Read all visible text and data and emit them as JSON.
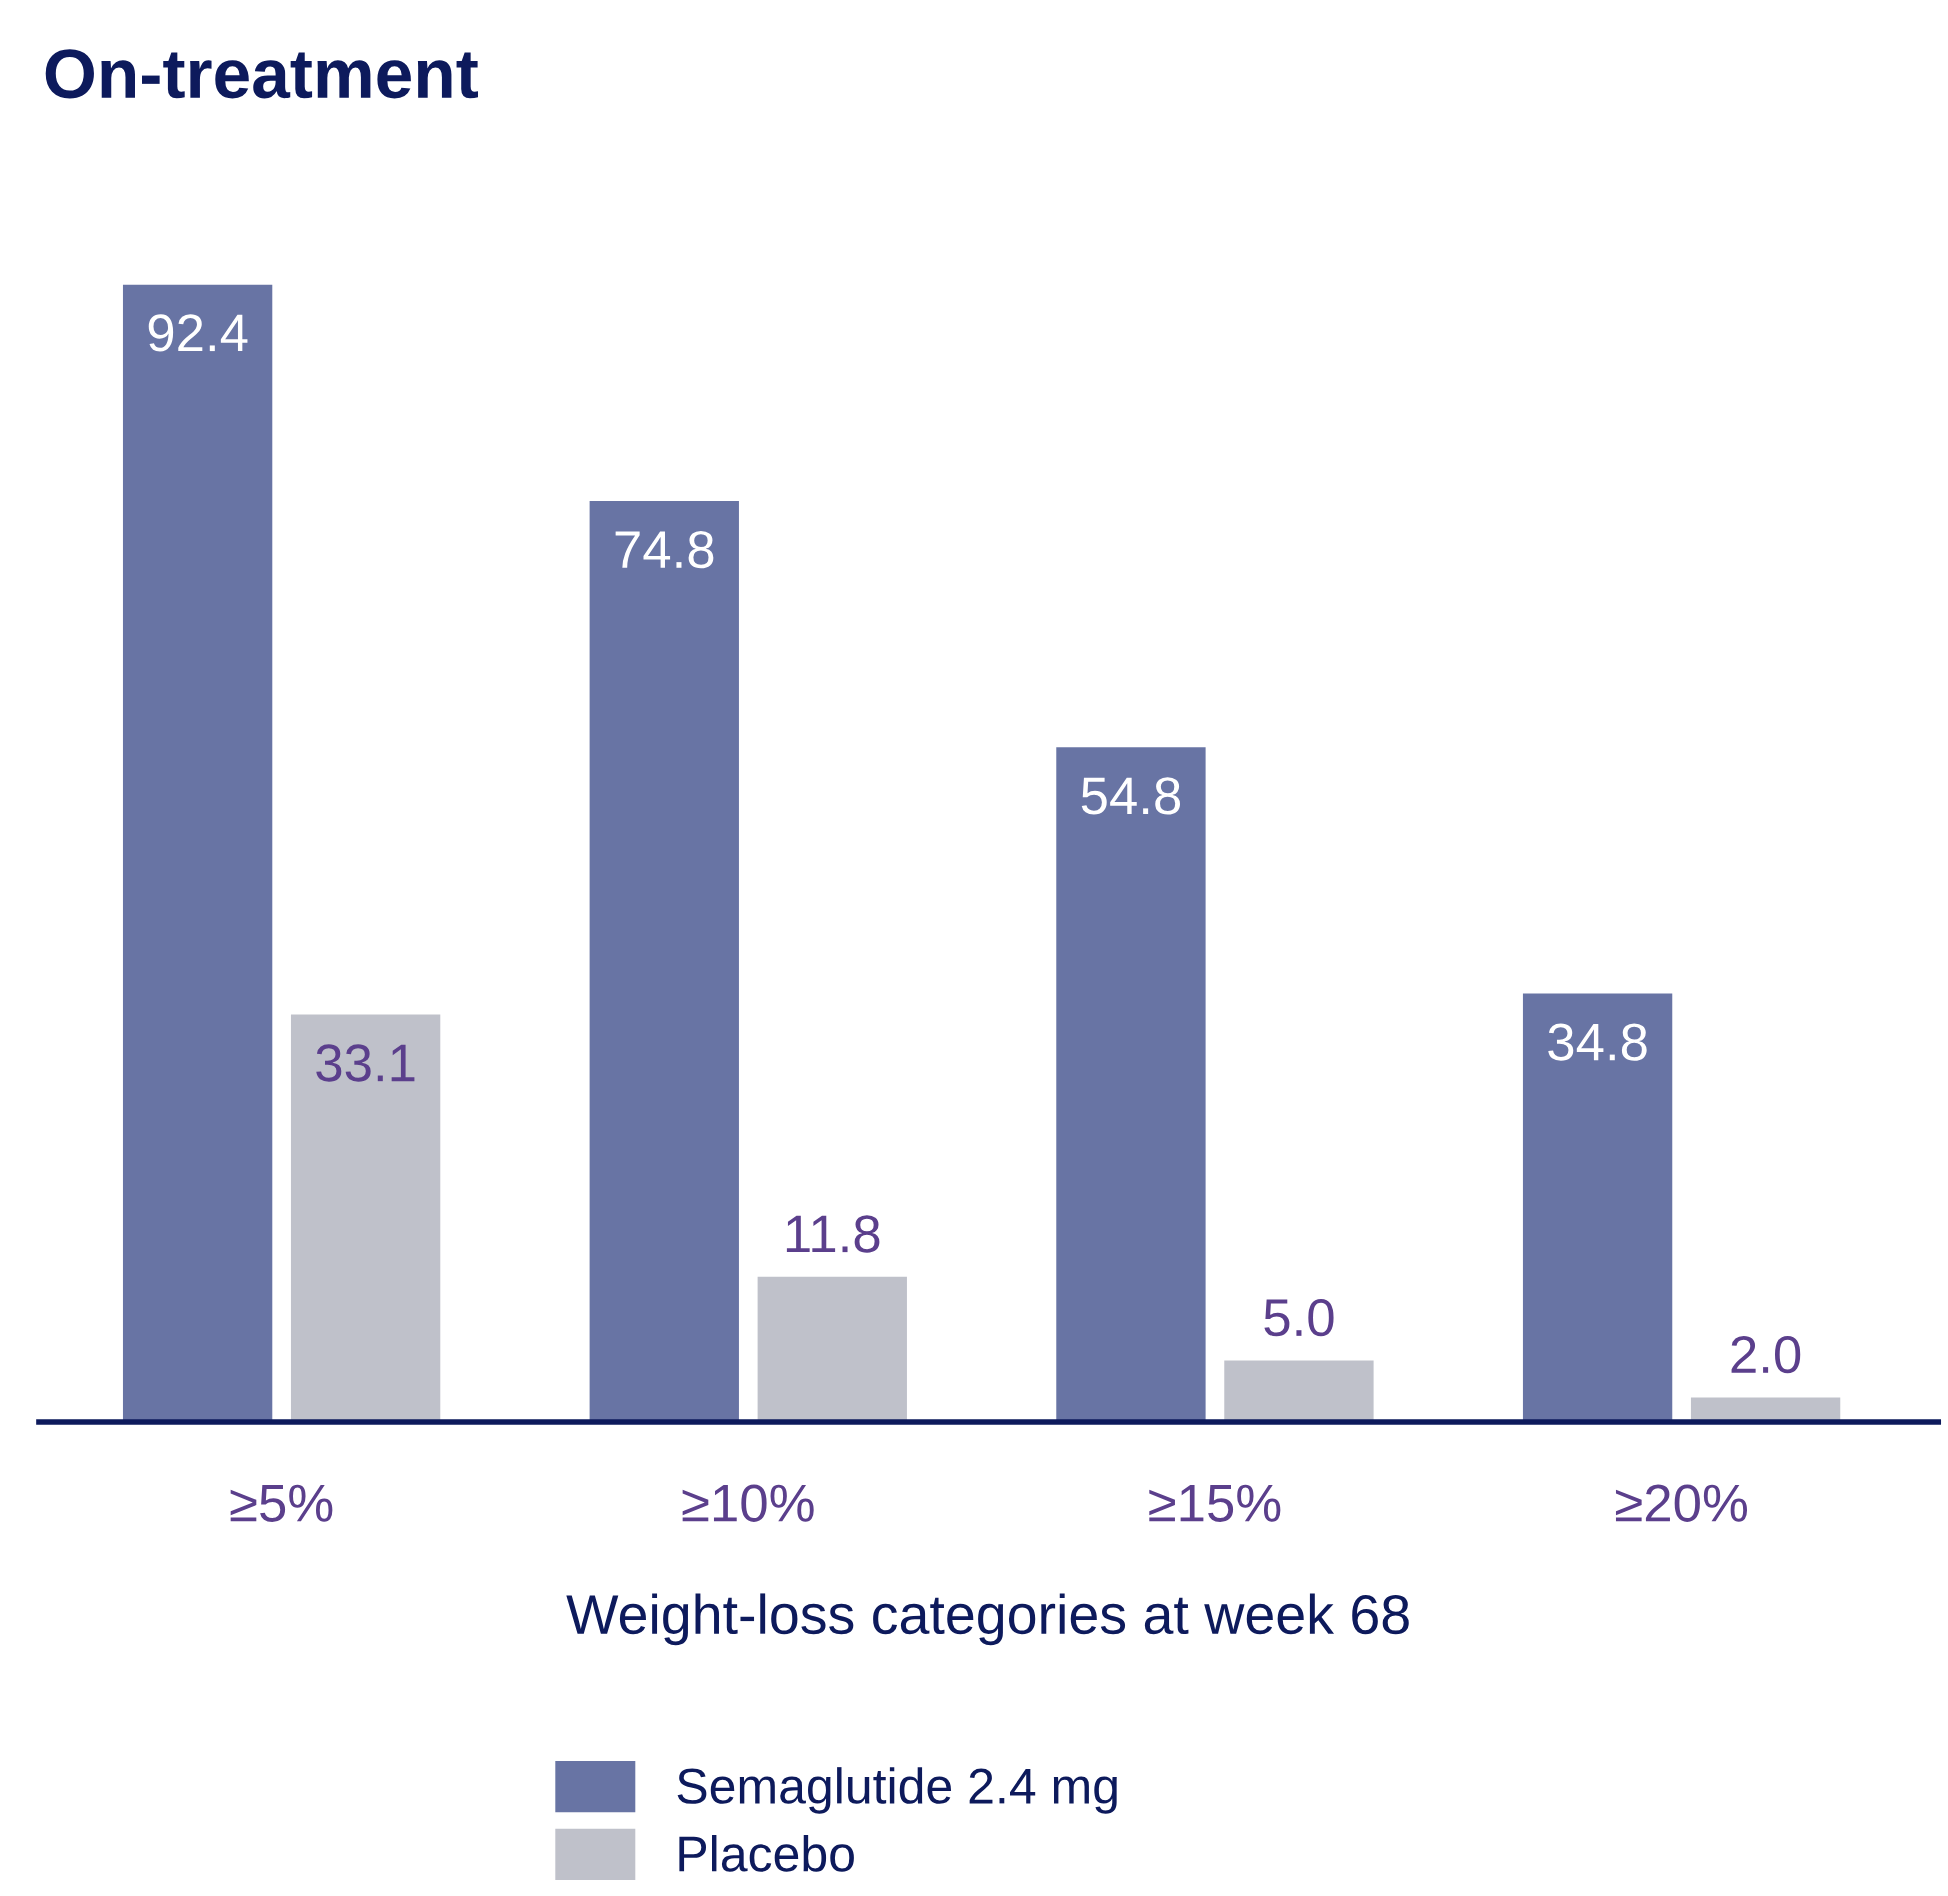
{
  "chart_data": {
    "type": "bar",
    "title": "On-treatment",
    "xlabel": "Weight-loss categories at week 68",
    "categories": [
      "≥5%",
      "≥10%",
      "≥15%",
      "≥20%"
    ],
    "series": [
      {
        "name": "Semaglutide 2.4 mg",
        "color": "#6874a4",
        "values": [
          92.4,
          74.8,
          54.8,
          34.8
        ],
        "value_labels": [
          "92.4",
          "74.8",
          "54.8",
          "34.8"
        ]
      },
      {
        "name": "Placebo",
        "color": "#bfc1ca",
        "values": [
          33.1,
          11.8,
          5.0,
          2.0
        ],
        "value_labels": [
          "33.1",
          "11.8",
          "5.0",
          "2.0"
        ]
      }
    ],
    "legend": "bottom",
    "grid": false
  }
}
